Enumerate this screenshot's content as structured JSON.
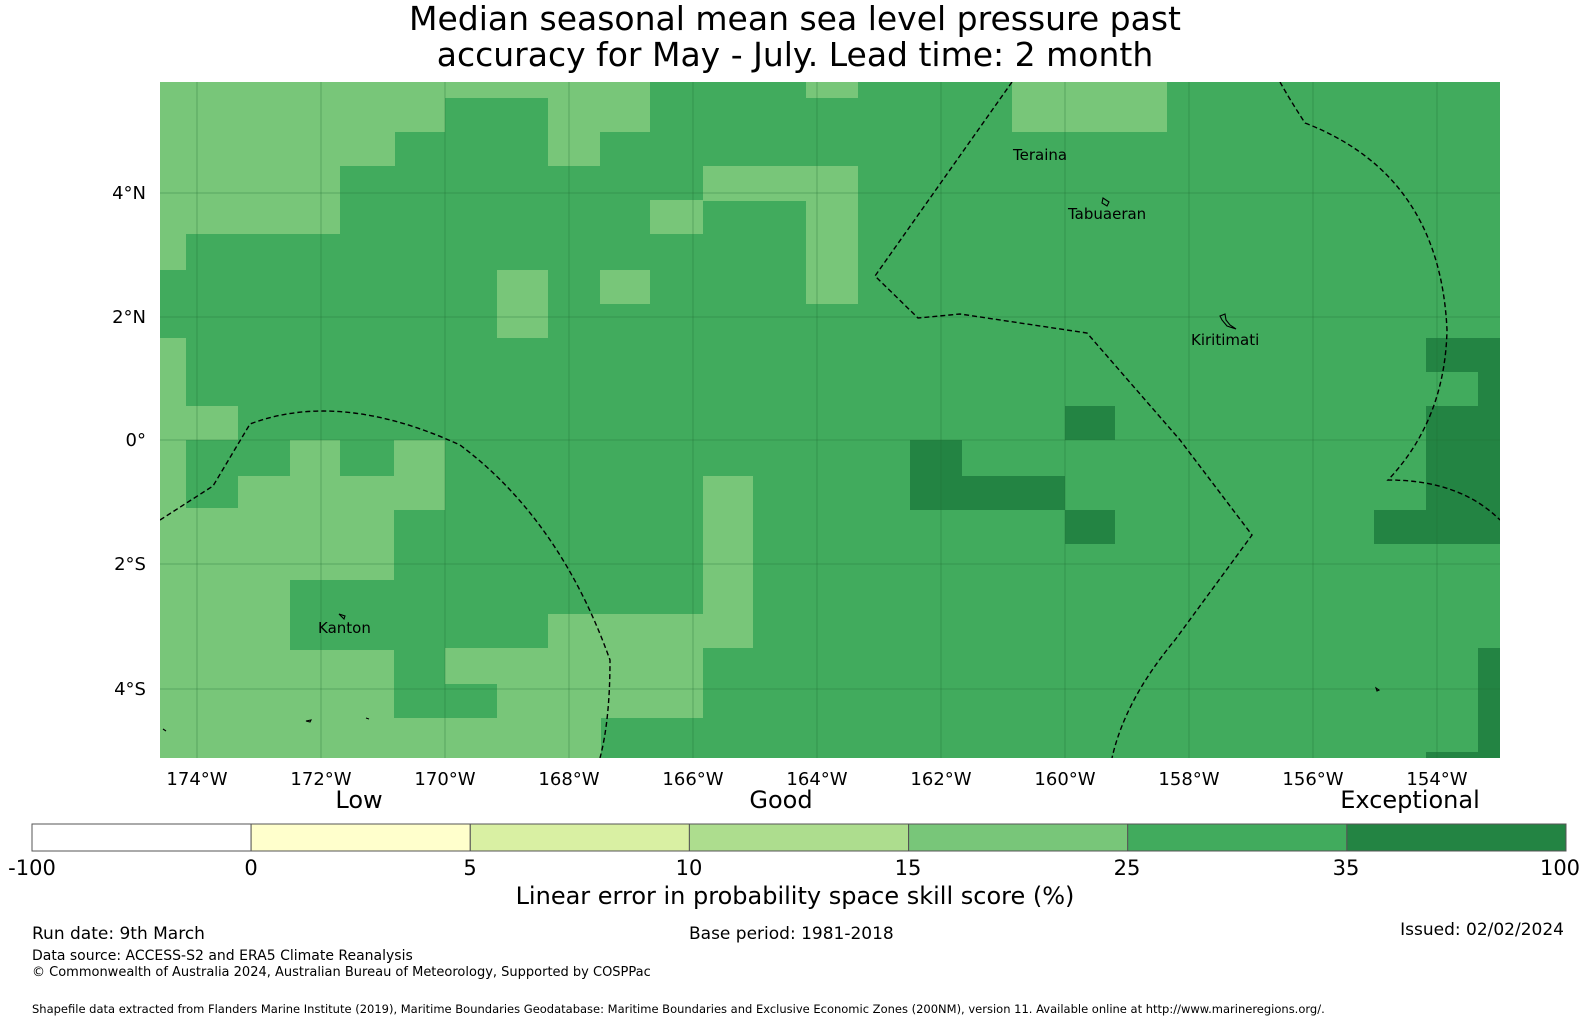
{
  "title_line1": "Median seasonal mean sea level pressure past",
  "title_line2": "accuracy for May - July. Lead time: 2 month",
  "map": {
    "lon_ticks": [
      "174°W",
      "172°W",
      "170°W",
      "168°W",
      "166°W",
      "164°W",
      "162°W",
      "160°W",
      "158°W",
      "156°W",
      "154°W"
    ],
    "lat_ticks": [
      "4°N",
      "2°N",
      "0°",
      "2°S",
      "4°S"
    ],
    "places": [
      "Teraina",
      "Tabuaeran",
      "Kiritimati",
      "Kanton"
    ]
  },
  "colorbar": {
    "category_labels": [
      "Low",
      "Good",
      "Exceptional"
    ],
    "tick_labels": [
      "-100",
      "0",
      "5",
      "10",
      "15",
      "25",
      "35",
      "100"
    ],
    "colors": [
      "#ffffff",
      "#ffffcc",
      "#d9f0a3",
      "#addd8e",
      "#78c679",
      "#41ab5d",
      "#238443"
    ],
    "title": "Linear error in probability space skill score (%)"
  },
  "footer": {
    "run_date": "Run date: 9th March",
    "base_period": "Base period: 1981-2018",
    "issued": "Issued: 02/02/2024",
    "data_source": "Data source: ACCESS-S2 and ERA5 Climate Reanalysis",
    "copyright": "© Commonwealth of Australia 2024, Australian Bureau of Meteorology, Supported by COSPPac",
    "shapefile": "Shapefile data extracted from Flanders Marine Institute (2019), Maritime Boundaries Geodatabase: Maritime Boundaries and Exclusive Economic Zones (200NM), version 11. Available online at http://www.marineregions.org/."
  }
}
